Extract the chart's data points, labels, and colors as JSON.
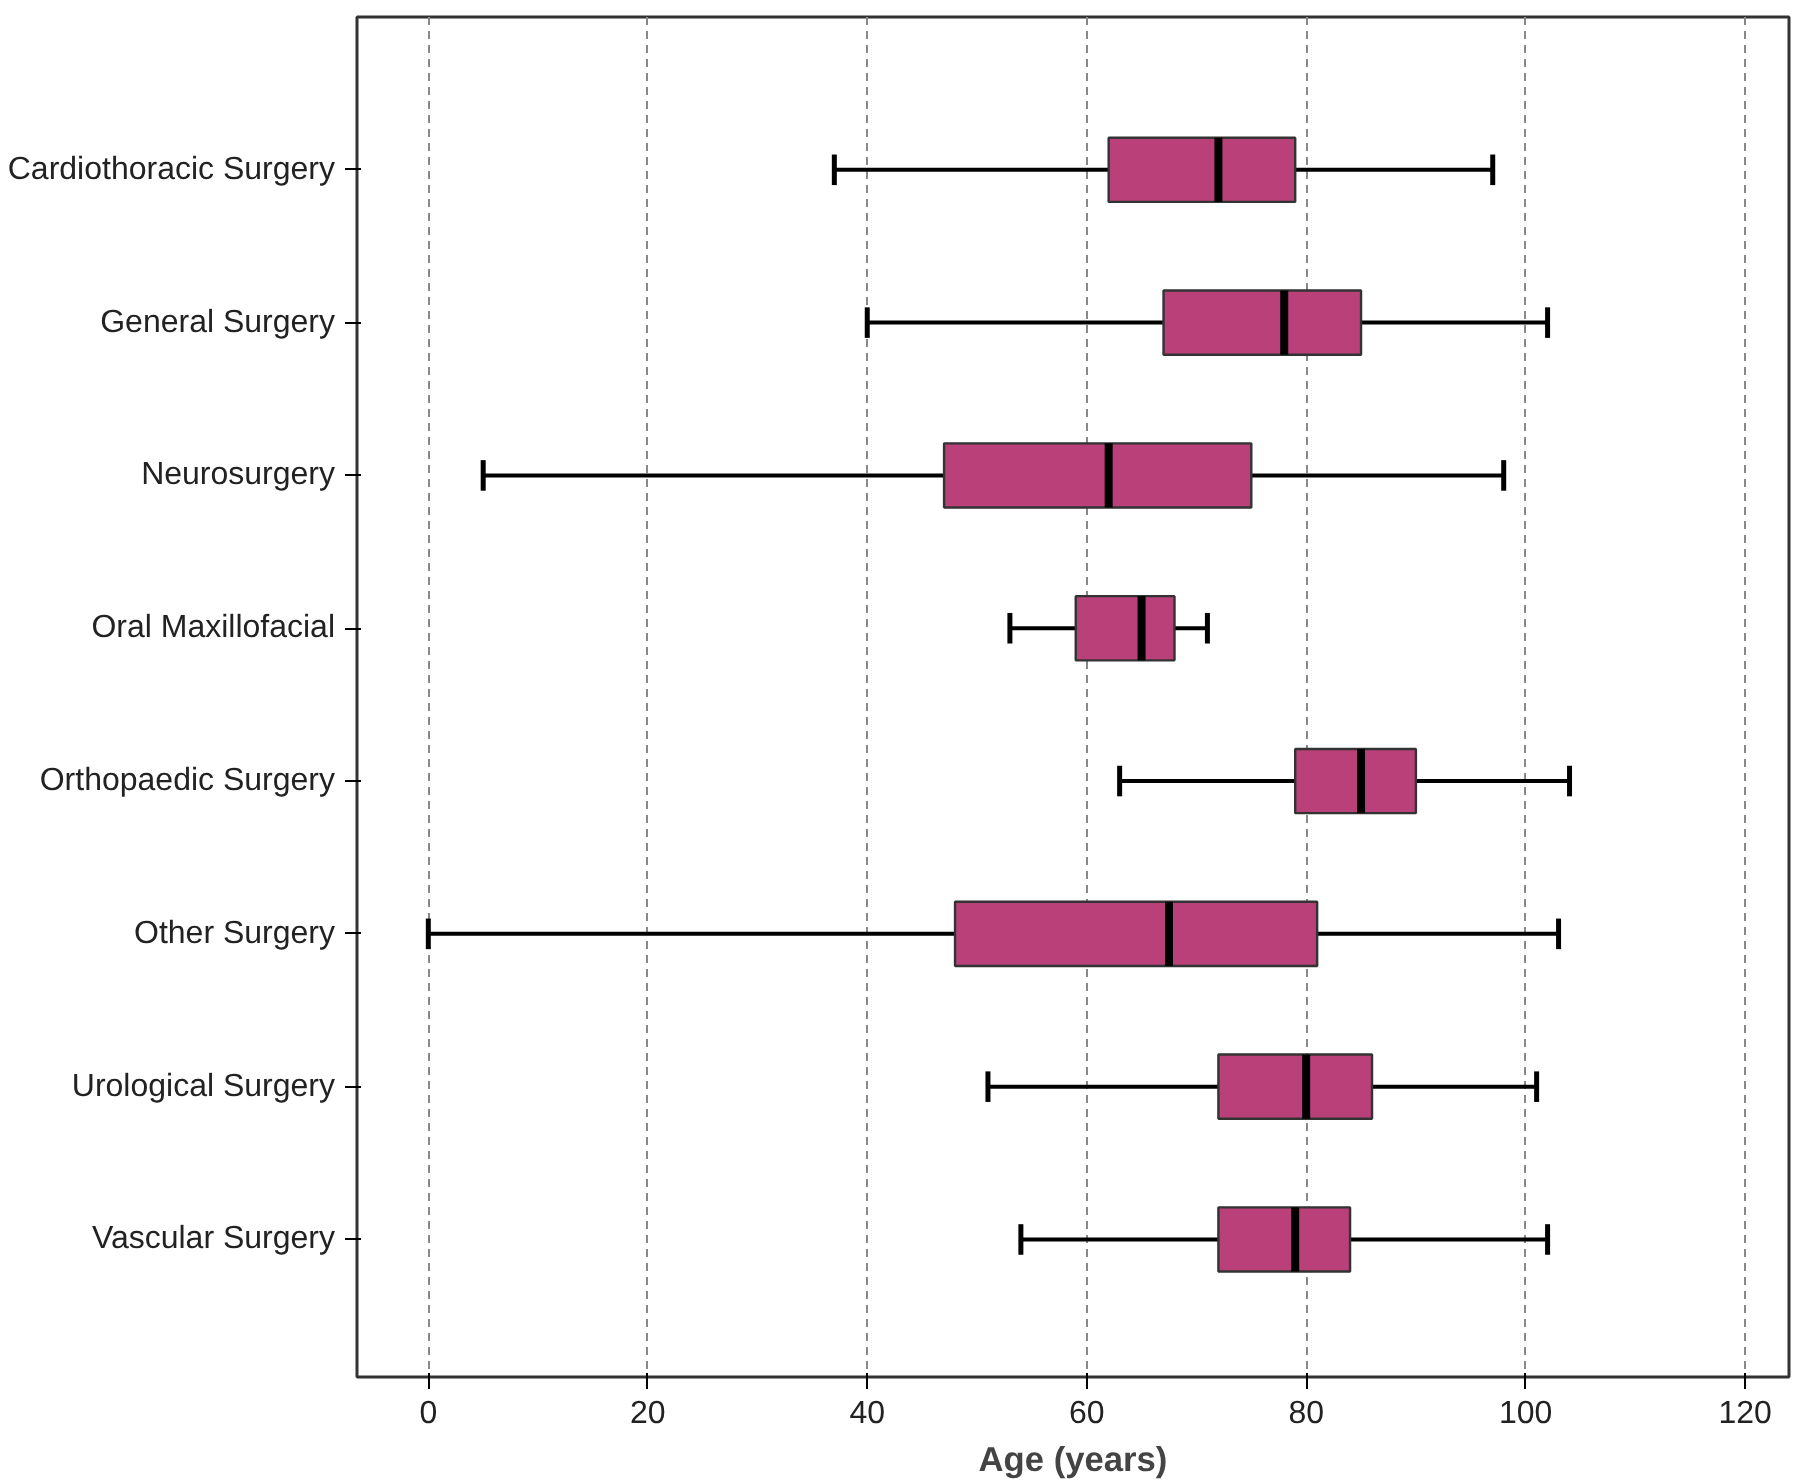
{
  "chart_data": {
    "type": "box",
    "orientation": "horizontal",
    "xlabel": "Age (years)",
    "categories": [
      "Cardiothoracic Surgery",
      "General Surgery",
      "Neurosurgery",
      "Oral Maxillofacial",
      "Orthopaedic Surgery",
      "Other Surgery",
      "Urological Surgery",
      "Vascular Surgery"
    ],
    "color": "#b94079",
    "boxes": [
      {
        "low": 37,
        "q1": 62,
        "median": 72,
        "q3": 79,
        "high": 97
      },
      {
        "low": 40,
        "q1": 67,
        "median": 78,
        "q3": 85,
        "high": 102
      },
      {
        "low": 5,
        "q1": 47,
        "median": 62,
        "q3": 75,
        "high": 98
      },
      {
        "low": 53,
        "q1": 59,
        "median": 65,
        "q3": 68,
        "high": 71
      },
      {
        "low": 63,
        "q1": 79,
        "median": 85,
        "q3": 90,
        "high": 104
      },
      {
        "low": 0,
        "q1": 48,
        "median": 67.5,
        "q3": 81,
        "high": 103
      },
      {
        "low": 51,
        "q1": 72,
        "median": 80,
        "q3": 86,
        "high": 101
      },
      {
        "low": 54,
        "q1": 72,
        "median": 79,
        "q3": 84,
        "high": 102
      }
    ],
    "xlim": [
      -6.5,
      124
    ],
    "xticks": [
      0,
      20,
      40,
      60,
      80,
      100,
      120
    ],
    "grid": "x"
  }
}
